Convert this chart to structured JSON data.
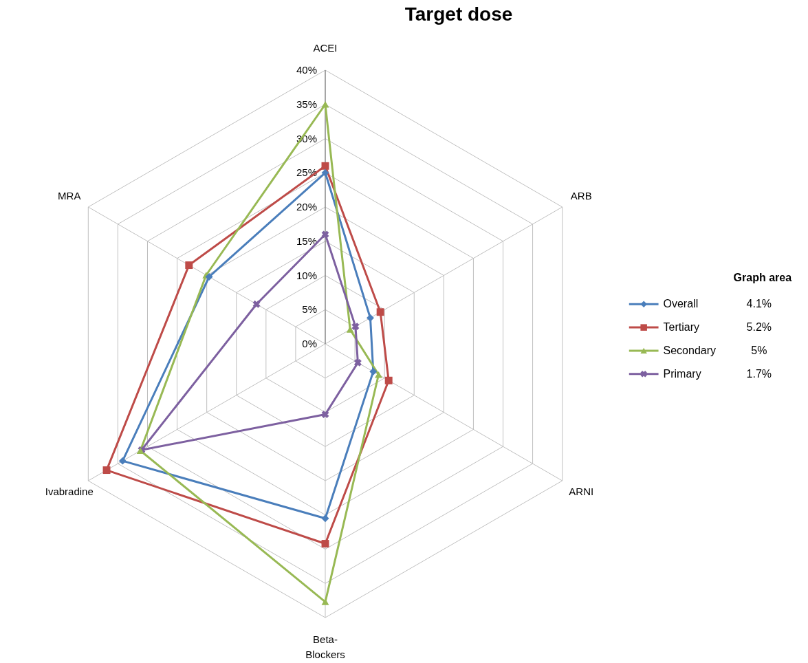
{
  "chart_data": {
    "type": "radar",
    "title": "Target dose",
    "legend_title": "Graph area",
    "categories": [
      "ACEI",
      "ARB",
      "ARNI",
      "Beta-Blockers",
      "Ivabradine",
      "MRA"
    ],
    "series": [
      {
        "name": "Overall",
        "color": "#4a7ebb",
        "marker": "diamond",
        "values": [
          25,
          7.6,
          8.1,
          25.5,
          34.2,
          19.6
        ]
      },
      {
        "name": "Tertiary",
        "color": "#be4b48",
        "marker": "square",
        "values": [
          26,
          9.3,
          10.7,
          29.2,
          36.9,
          23
        ]
      },
      {
        "name": "Secondary",
        "color": "#98b954",
        "marker": "triangle",
        "values": [
          35,
          4.2,
          9,
          37.7,
          31.2,
          20.1
        ]
      },
      {
        "name": "Primary",
        "color": "#7d60a0",
        "marker": "cross",
        "values": [
          16,
          5.1,
          5.5,
          10.3,
          31,
          11.6
        ]
      }
    ],
    "annotations": [
      "4.1%",
      "5.2%",
      "5%",
      "1.7%"
    ],
    "ylim": [
      0,
      40
    ],
    "yticks": [
      {
        "value": 0,
        "label": "0%"
      },
      {
        "value": 5,
        "label": "5%"
      },
      {
        "value": 10,
        "label": "10%"
      },
      {
        "value": 15,
        "label": "15%"
      },
      {
        "value": 20,
        "label": "20%"
      },
      {
        "value": 25,
        "label": "25%"
      },
      {
        "value": 30,
        "label": "30%"
      },
      {
        "value": 35,
        "label": "35%"
      },
      {
        "value": 40,
        "label": "40%"
      }
    ],
    "grid": true,
    "legend": "right"
  }
}
